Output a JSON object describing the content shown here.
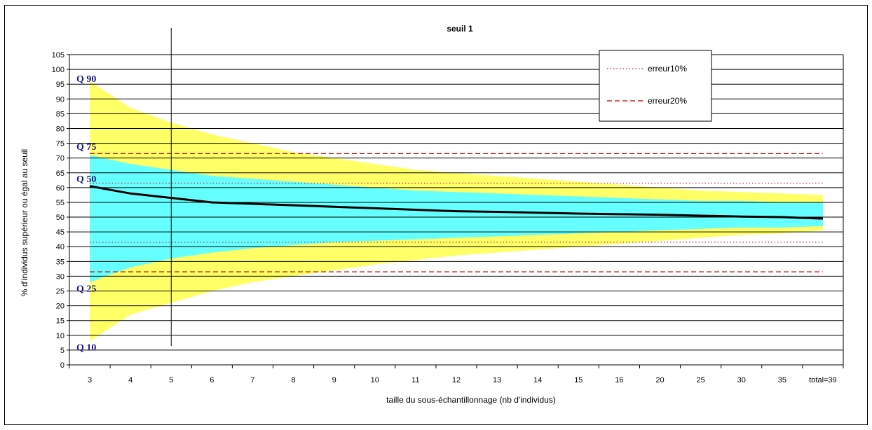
{
  "chart_data": {
    "type": "area",
    "title": "seuil 1",
    "xlabel": "taille du sous-échantillonnage (nb d'individus)",
    "ylabel": "% d'individus supérieur ou égal au seuil",
    "ylim": [
      0,
      105
    ],
    "yticks": [
      0,
      5,
      10,
      15,
      20,
      25,
      30,
      35,
      40,
      45,
      50,
      55,
      60,
      65,
      70,
      75,
      80,
      85,
      90,
      95,
      100,
      105
    ],
    "categories": [
      "3",
      "4",
      "5",
      "6",
      "7",
      "8",
      "9",
      "10",
      "11",
      "12",
      "13",
      "14",
      "15",
      "16",
      "20",
      "25",
      "30",
      "35",
      "total=39"
    ],
    "grid": true,
    "legend_position": "top-right",
    "series": [
      {
        "name": "Q 90",
        "values": [
          96,
          87,
          82,
          78,
          75,
          72,
          70,
          68,
          66,
          65,
          64,
          63,
          62,
          61,
          60,
          59,
          58.5,
          58,
          57.5
        ],
        "color": "#ffff66"
      },
      {
        "name": "Q 75",
        "values": [
          71,
          68,
          66,
          64,
          63,
          62,
          61,
          60,
          59,
          58.5,
          58,
          57.5,
          57,
          56.5,
          56,
          55.5,
          55.5,
          55,
          55
        ],
        "color": "#66ffff"
      },
      {
        "name": "Q 50",
        "values": [
          60.5,
          58,
          56.5,
          55,
          54.5,
          54,
          53.5,
          53,
          52.5,
          52,
          51.8,
          51.5,
          51.2,
          51,
          50.8,
          50.5,
          50.2,
          50,
          49.5
        ],
        "color": "#000000"
      },
      {
        "name": "Q 25",
        "values": [
          28,
          33,
          36,
          38,
          39.5,
          40.5,
          41.5,
          42,
          42.5,
          43,
          43.5,
          44,
          44.5,
          45,
          45.5,
          46,
          46.5,
          46.5,
          47
        ],
        "color": "#66ffff"
      },
      {
        "name": "Q 10",
        "values": [
          8,
          17,
          21,
          25,
          28,
          30,
          32,
          34,
          35.5,
          37,
          38,
          39,
          40,
          41,
          42,
          43,
          44,
          44.5,
          45.5
        ],
        "color": "#ffff66"
      },
      {
        "name": "erreur10%",
        "values": [
          61.5,
          61.5,
          61.5,
          61.5,
          61.5,
          61.5,
          61.5,
          61.5,
          61.5,
          61.5,
          61.5,
          61.5,
          61.5,
          61.5,
          61.5,
          61.5,
          61.5,
          61.5,
          61.5
        ],
        "lower": 41.5,
        "style": "dotted",
        "color": "#c02040"
      },
      {
        "name": "erreur20%",
        "values": [
          71.5,
          71.5,
          71.5,
          71.5,
          71.5,
          71.5,
          71.5,
          71.5,
          71.5,
          71.5,
          71.5,
          71.5,
          71.5,
          71.5,
          71.5,
          71.5,
          71.5,
          71.5,
          71.5
        ],
        "lower": 31.5,
        "style": "dashed",
        "color": "#c00000"
      }
    ],
    "band_labels": [
      {
        "text": "Q 90",
        "y": 97
      },
      {
        "text": "Q 75",
        "y": 74
      },
      {
        "text": "Q 50",
        "y": 63
      },
      {
        "text": "Q 25",
        "y": 26
      },
      {
        "text": "Q 10",
        "y": 6
      }
    ],
    "vertical_marker_category": "5",
    "legend": [
      {
        "label": "erreur10%",
        "style": "dotted"
      },
      {
        "label": "erreur20%",
        "style": "dashed"
      }
    ]
  }
}
